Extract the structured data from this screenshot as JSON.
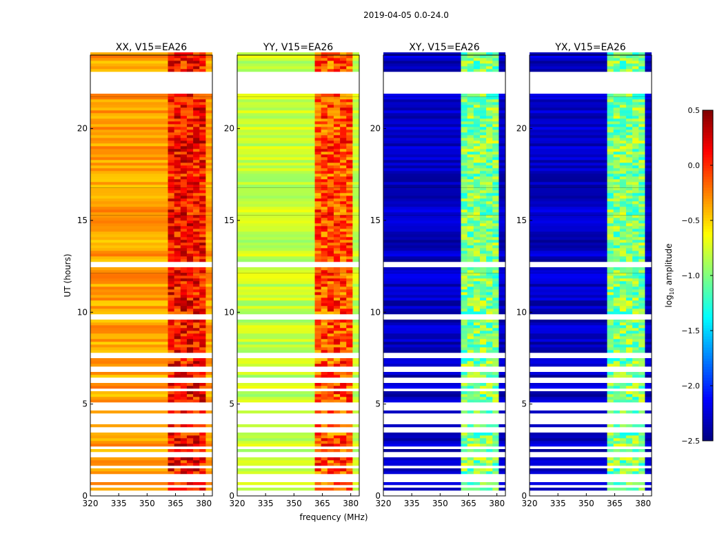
{
  "chart_data": {
    "type": "heatmap",
    "suptitle": "2019-04-05 0.0-24.0",
    "xlabel": "frequency (MHz)",
    "ylabel": "UT (hours)",
    "xlim": [
      320,
      384.5
    ],
    "ylim": [
      0,
      24
    ],
    "xticks": [
      "320",
      "335",
      "350",
      "365",
      "380"
    ],
    "yticks": [
      "0",
      "5",
      "10",
      "15",
      "20"
    ],
    "colorbar": {
      "label_base": "log",
      "label_sub": "10",
      "label_rest": " amplitude",
      "range": [
        -2.5,
        0.5
      ],
      "ticks": [
        "0.5",
        "0.0",
        "−0.5",
        "−1.0",
        "−1.5",
        "−2.0",
        "−2.5"
      ],
      "colormap": "jet"
    },
    "rfi_band_MHz": [
      361,
      381
    ],
    "gaps_hours": [
      [
        21.8,
        23.0
      ],
      [
        12.4,
        12.7
      ],
      [
        9.6,
        9.8
      ]
    ],
    "sparse_hours": [
      0,
      7.8
    ],
    "panels": [
      {
        "title": "XX, V15=EA26",
        "low_band_level": -0.35,
        "rfi_band_level": 0.1
      },
      {
        "title": "YY, V15=EA26",
        "low_band_level": -0.8,
        "rfi_band_level": -0.1
      },
      {
        "title": "XY, V15=EA26",
        "low_band_level": -2.3,
        "rfi_band_level": -1.0
      },
      {
        "title": "YX, V15=EA26",
        "low_band_level": -2.3,
        "rfi_band_level": -1.0
      }
    ]
  }
}
